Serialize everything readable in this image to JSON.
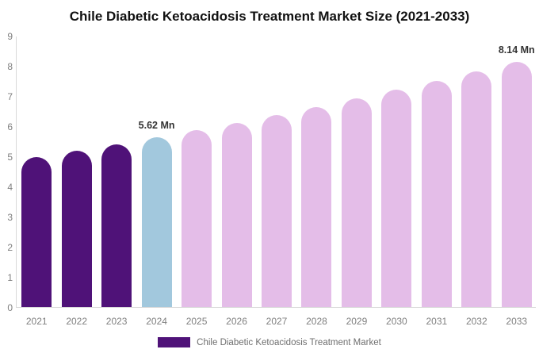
{
  "chart_data": {
    "type": "bar",
    "title": "Chile Diabetic Ketoacidosis Treatment Market Size (2021-2033)",
    "xlabel": "",
    "ylabel": "",
    "categories": [
      "2021",
      "2022",
      "2023",
      "2024",
      "2025",
      "2026",
      "2027",
      "2028",
      "2029",
      "2030",
      "2031",
      "2032",
      "2033"
    ],
    "values": [
      4.97,
      5.18,
      5.39,
      5.62,
      5.86,
      6.1,
      6.36,
      6.63,
      6.91,
      7.2,
      7.5,
      7.81,
      8.14
    ],
    "value_unit": "Mn",
    "ylim": [
      0,
      9
    ],
    "yticks": [
      0,
      1,
      2,
      3,
      4,
      5,
      6,
      7,
      8,
      9
    ],
    "grid": false,
    "bar_colors": [
      "#4F1278",
      "#4F1278",
      "#4F1278",
      "#A2C8DD",
      "#E4BDE8",
      "#E4BDE8",
      "#E4BDE8",
      "#E4BDE8",
      "#E4BDE8",
      "#E4BDE8",
      "#E4BDE8",
      "#E4BDE8",
      "#E4BDE8"
    ],
    "annotations": [
      {
        "category": "2024",
        "text": "5.62 Mn"
      },
      {
        "category": "2033",
        "text": "8.14 Mn"
      }
    ],
    "legend": {
      "position": "bottom-center",
      "label": "Chile Diabetic Ketoacidosis Treatment Market",
      "swatch_color": "#4F1278"
    },
    "colors": {
      "historical_bar": "#4F1278",
      "base_year_bar": "#A2C8DD",
      "forecast_bar": "#E4BDE8",
      "axis_line": "#d9d9d9",
      "tick_text": "#7f7f7f",
      "annotation_text": "#333333",
      "title_text": "#111111",
      "background": "#ffffff"
    }
  }
}
